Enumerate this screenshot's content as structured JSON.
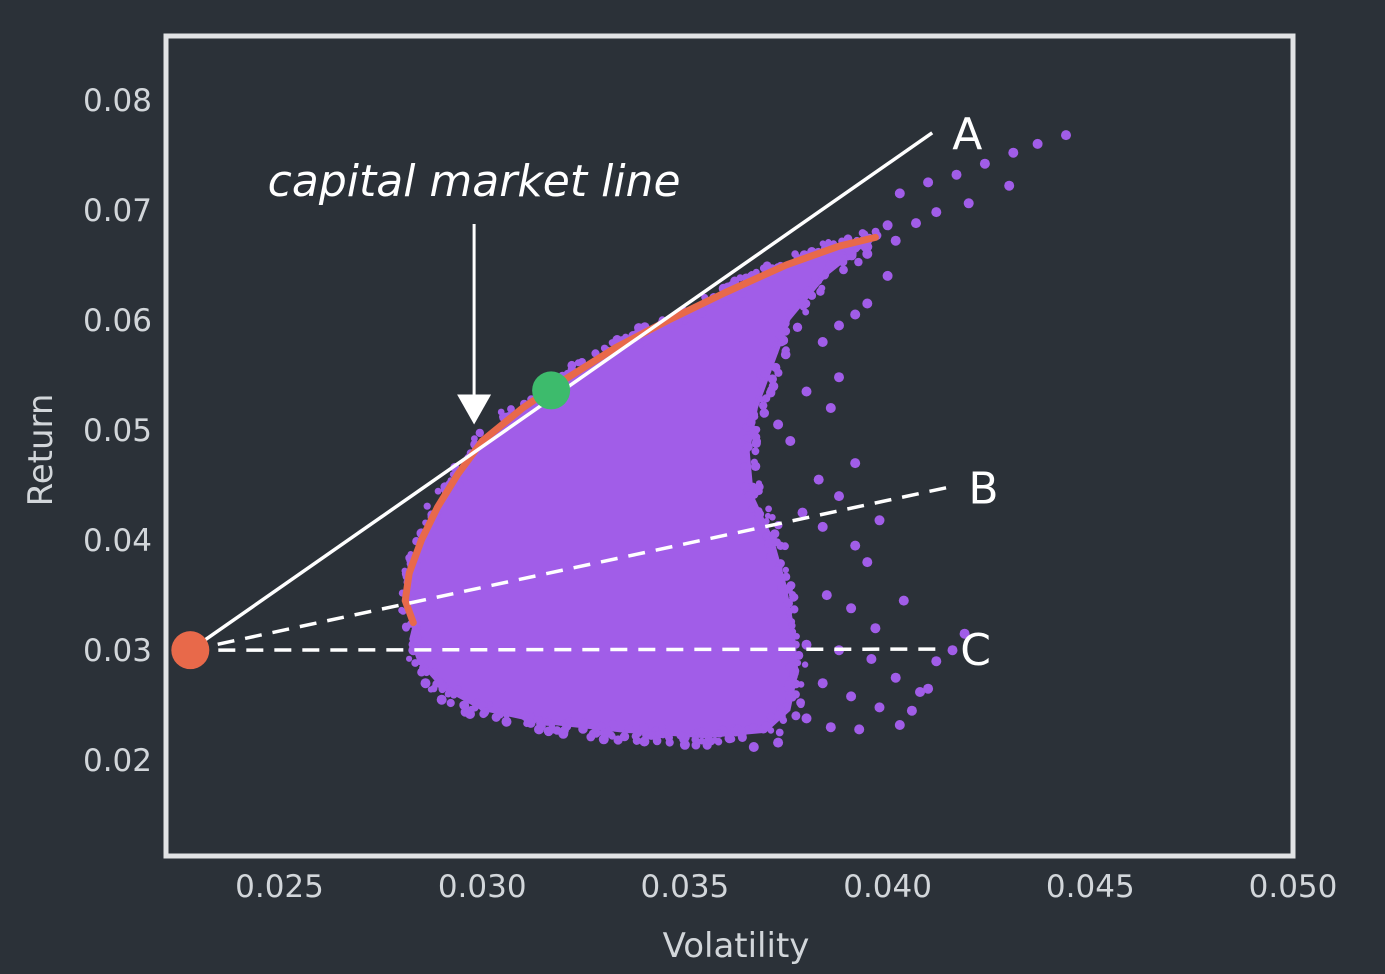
{
  "chart_data": {
    "type": "scatter",
    "xlabel": "Volatility",
    "ylabel": "Return",
    "xlim": [
      0.0222,
      0.05
    ],
    "ylim": [
      0.0113,
      0.0858
    ],
    "x_ticks": [
      "0.025",
      "0.030",
      "0.035",
      "0.040",
      "0.045",
      "0.050"
    ],
    "x_tick_values": [
      0.025,
      0.03,
      0.035,
      0.04,
      0.045,
      0.05
    ],
    "y_ticks": [
      "0.08",
      "0.07",
      "0.06",
      "0.05",
      "0.04",
      "0.03",
      "0.02"
    ],
    "y_tick_values": [
      0.08,
      0.07,
      0.06,
      0.05,
      0.04,
      0.03,
      0.02
    ],
    "grid": false,
    "annotation": {
      "text": "capital market line",
      "arrow_tip": [
        0.0298,
        0.0505
      ]
    },
    "risk_free_point": {
      "x": 0.0228,
      "y": 0.03,
      "color": "#e8694a"
    },
    "tangency_point": {
      "x": 0.0317,
      "y": 0.0536,
      "color": "#3dbb6c"
    },
    "lines": [
      {
        "label": "A",
        "style": "solid",
        "from": [
          0.0228,
          0.03
        ],
        "to": [
          0.0411,
          0.077
        ],
        "color": "#ffffff"
      },
      {
        "label": "B",
        "style": "dashed",
        "from": [
          0.0228,
          0.03
        ],
        "to": [
          0.0415,
          0.0448
        ],
        "color": "#ffffff"
      },
      {
        "label": "C",
        "style": "dashed",
        "from": [
          0.0228,
          0.03
        ],
        "to": [
          0.0413,
          0.0301
        ],
        "color": "#ffffff"
      }
    ],
    "efficient_frontier": {
      "color": "#e8694a",
      "points": [
        [
          0.0283,
          0.0325
        ],
        [
          0.0281,
          0.0345
        ],
        [
          0.0282,
          0.037
        ],
        [
          0.0285,
          0.04
        ],
        [
          0.0289,
          0.043
        ],
        [
          0.0294,
          0.046
        ],
        [
          0.03,
          0.049
        ],
        [
          0.031,
          0.052
        ],
        [
          0.032,
          0.0545
        ],
        [
          0.0333,
          0.0575
        ],
        [
          0.0346,
          0.06
        ],
        [
          0.036,
          0.0625
        ],
        [
          0.0375,
          0.065
        ],
        [
          0.0388,
          0.0667
        ],
        [
          0.0397,
          0.0675
        ]
      ]
    },
    "portfolio_cloud": {
      "color": "#a15de8",
      "boundary": [
        [
          0.0283,
          0.0325
        ],
        [
          0.0281,
          0.0345
        ],
        [
          0.0282,
          0.037
        ],
        [
          0.0285,
          0.04
        ],
        [
          0.0289,
          0.043
        ],
        [
          0.0294,
          0.046
        ],
        [
          0.03,
          0.049
        ],
        [
          0.031,
          0.052
        ],
        [
          0.032,
          0.0545
        ],
        [
          0.0333,
          0.0575
        ],
        [
          0.0346,
          0.06
        ],
        [
          0.036,
          0.0625
        ],
        [
          0.0375,
          0.065
        ],
        [
          0.0388,
          0.0667
        ],
        [
          0.0397,
          0.0675
        ],
        [
          0.0385,
          0.064
        ],
        [
          0.0376,
          0.06
        ],
        [
          0.0372,
          0.056
        ],
        [
          0.0368,
          0.052
        ],
        [
          0.0366,
          0.048
        ],
        [
          0.0367,
          0.044
        ],
        [
          0.0372,
          0.04
        ],
        [
          0.0375,
          0.036
        ],
        [
          0.0377,
          0.032
        ],
        [
          0.0378,
          0.028
        ],
        [
          0.0376,
          0.0245
        ],
        [
          0.037,
          0.0225
        ],
        [
          0.0355,
          0.022
        ],
        [
          0.0335,
          0.0225
        ],
        [
          0.0315,
          0.0233
        ],
        [
          0.03,
          0.0245
        ],
        [
          0.029,
          0.0265
        ],
        [
          0.0284,
          0.029
        ],
        [
          0.0282,
          0.031
        ]
      ],
      "outliers": [
        [
          0.0403,
          0.0715
        ],
        [
          0.041,
          0.0725
        ],
        [
          0.0417,
          0.0732
        ],
        [
          0.0424,
          0.0742
        ],
        [
          0.0431,
          0.0752
        ],
        [
          0.0437,
          0.076
        ],
        [
          0.0444,
          0.0768
        ],
        [
          0.042,
          0.0706
        ],
        [
          0.043,
          0.0722
        ],
        [
          0.0412,
          0.0698
        ],
        [
          0.04,
          0.0686
        ],
        [
          0.0395,
          0.066
        ],
        [
          0.0402,
          0.0672
        ],
        [
          0.0407,
          0.0688
        ],
        [
          0.0395,
          0.0615
        ],
        [
          0.04,
          0.064
        ],
        [
          0.0388,
          0.0595
        ],
        [
          0.0392,
          0.0605
        ],
        [
          0.0384,
          0.058
        ],
        [
          0.0388,
          0.0548
        ],
        [
          0.038,
          0.0535
        ],
        [
          0.0386,
          0.052
        ],
        [
          0.0392,
          0.047
        ],
        [
          0.0383,
          0.0455
        ],
        [
          0.0388,
          0.044
        ],
        [
          0.0392,
          0.0395
        ],
        [
          0.0395,
          0.038
        ],
        [
          0.0398,
          0.0418
        ],
        [
          0.0385,
          0.035
        ],
        [
          0.0391,
          0.0338
        ],
        [
          0.0397,
          0.032
        ],
        [
          0.0404,
          0.0345
        ],
        [
          0.038,
          0.0305
        ],
        [
          0.0388,
          0.03
        ],
        [
          0.0396,
          0.0292
        ],
        [
          0.0402,
          0.0275
        ],
        [
          0.0408,
          0.0262
        ],
        [
          0.0384,
          0.027
        ],
        [
          0.0391,
          0.0258
        ],
        [
          0.0398,
          0.0248
        ],
        [
          0.0406,
          0.0245
        ],
        [
          0.038,
          0.0238
        ],
        [
          0.0386,
          0.023
        ],
        [
          0.0393,
          0.0228
        ],
        [
          0.0403,
          0.0232
        ],
        [
          0.041,
          0.0265
        ],
        [
          0.0416,
          0.03
        ],
        [
          0.0419,
          0.0315
        ],
        [
          0.0412,
          0.029
        ],
        [
          0.0373,
          0.0216
        ],
        [
          0.0367,
          0.0212
        ],
        [
          0.0361,
          0.022
        ],
        [
          0.035,
          0.0214
        ],
        [
          0.034,
          0.0217
        ],
        [
          0.033,
          0.0219
        ],
        [
          0.032,
          0.0224
        ],
        [
          0.0314,
          0.0228
        ],
        [
          0.0306,
          0.0235
        ],
        [
          0.0297,
          0.0242
        ],
        [
          0.029,
          0.0255
        ],
        [
          0.0286,
          0.027
        ],
        [
          0.0283,
          0.03
        ],
        [
          0.0379,
          0.0425
        ],
        [
          0.0384,
          0.0412
        ],
        [
          0.0376,
          0.049
        ],
        [
          0.0373,
          0.0505
        ]
      ]
    }
  }
}
